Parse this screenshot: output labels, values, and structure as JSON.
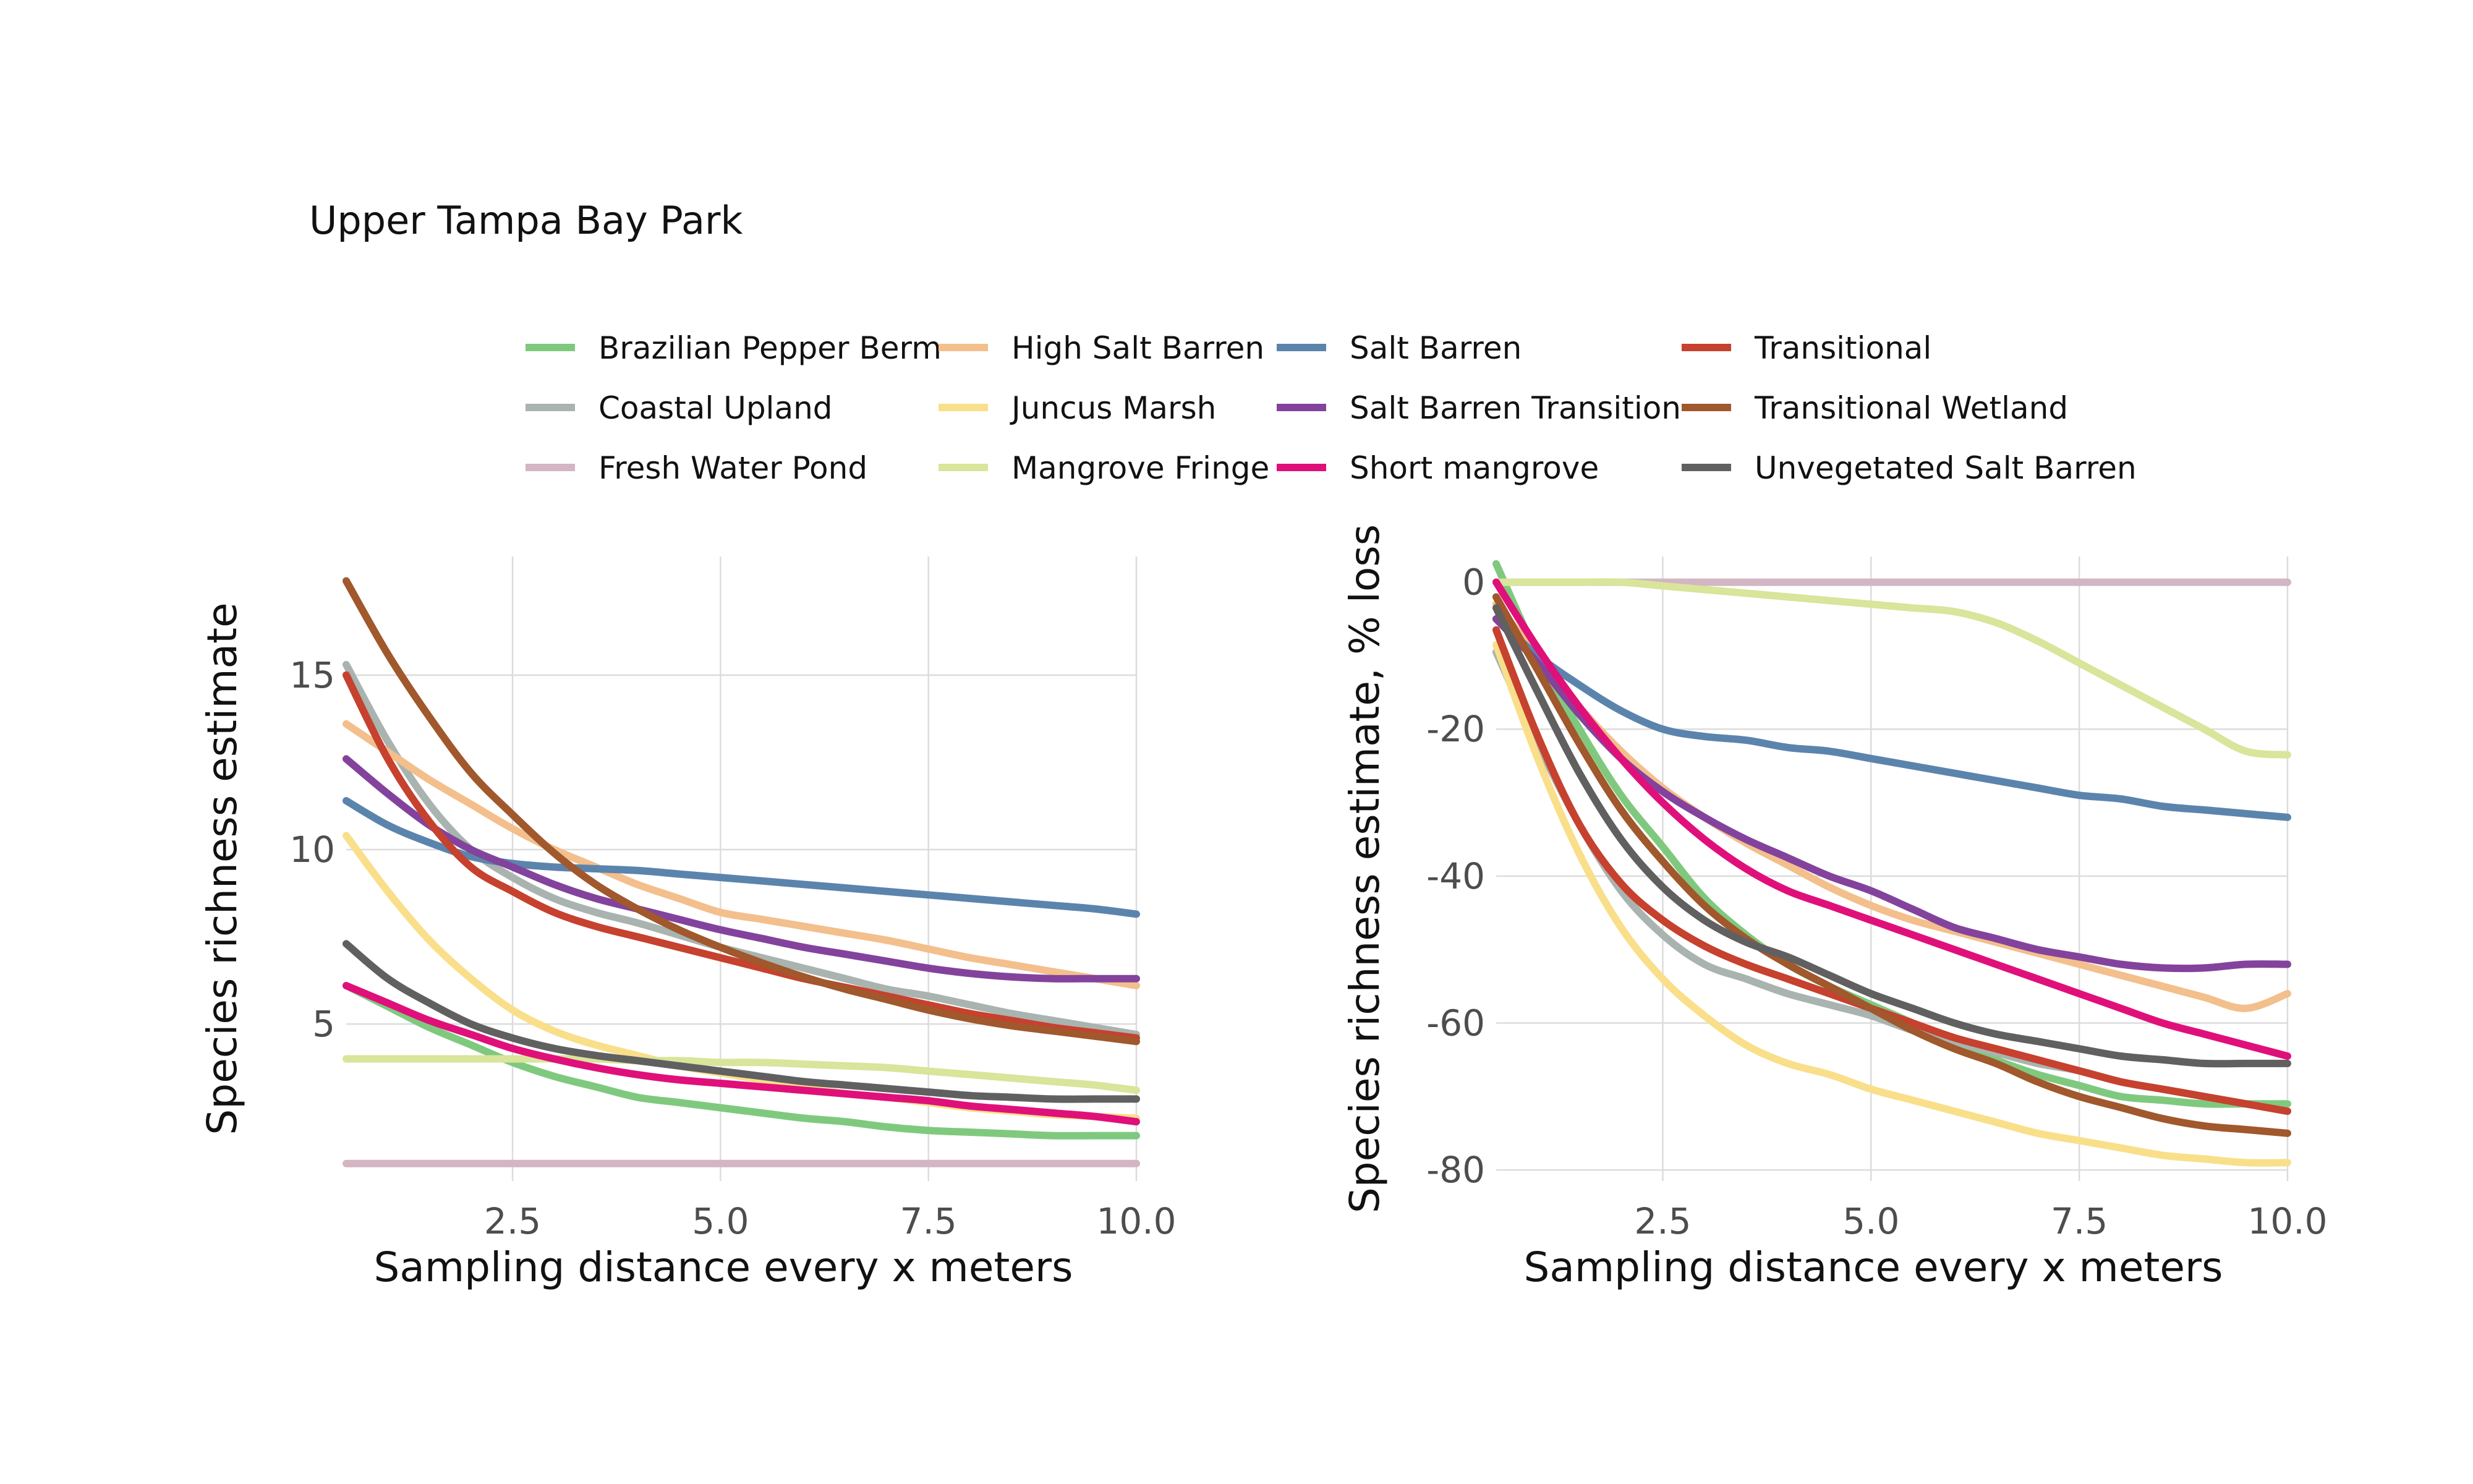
{
  "title": "Upper Tampa Bay Park",
  "colors": {
    "Brazilian Pepper Berm": "#7fc97f",
    "Coastal Upland": "#a9b3b0",
    "Fresh Water Pond": "#d3b5c3",
    "High Salt Barren": "#f3bf8c",
    "Juncus Marsh": "#f9df8a",
    "Mangrove Fringe": "#d8e59a",
    "Salt Barren": "#5b84ad",
    "Salt Barren Transition": "#83439d",
    "Short mangrove": "#e0107a",
    "Transitional": "#c6412e",
    "Transitional Wetland": "#a0582c",
    "Unvegetated Salt Barren": "#606060"
  },
  "legend": [
    "Brazilian Pepper Berm",
    "Coastal Upland",
    "Fresh Water Pond",
    "High Salt Barren",
    "Juncus Marsh",
    "Mangrove Fringe",
    "Salt Barren",
    "Salt Barren Transition",
    "Short mangrove",
    "Transitional",
    "Transitional Wetland",
    "Unvegetated Salt Barren"
  ],
  "chart_data": [
    {
      "type": "line",
      "xlabel": "Sampling distance every x meters",
      "ylabel": "Species richness estimate",
      "xlim": [
        0.5,
        10.0
      ],
      "ylim": [
        0.5,
        18.4
      ],
      "xticks": [
        "2.5",
        "5.0",
        "7.5",
        "10.0"
      ],
      "yticks": [
        "5",
        "10",
        "15"
      ],
      "grid": true,
      "x": [
        0.5,
        1,
        1.5,
        2,
        2.5,
        3,
        3.5,
        4,
        4.5,
        5,
        5.5,
        6,
        6.5,
        7,
        7.5,
        8,
        8.5,
        9,
        9.5,
        10
      ],
      "series": [
        {
          "name": "Brazilian Pepper Berm",
          "values": [
            6.1,
            5.5,
            4.9,
            4.4,
            3.9,
            3.5,
            3.2,
            2.9,
            2.75,
            2.6,
            2.45,
            2.3,
            2.2,
            2.05,
            1.95,
            1.9,
            1.85,
            1.8,
            1.8,
            1.8
          ]
        },
        {
          "name": "Coastal Upland",
          "values": [
            15.3,
            13.1,
            11.3,
            10.0,
            9.2,
            8.6,
            8.2,
            7.9,
            7.55,
            7.2,
            6.9,
            6.6,
            6.3,
            6.0,
            5.8,
            5.55,
            5.3,
            5.1,
            4.9,
            4.7
          ]
        },
        {
          "name": "Fresh Water Pond",
          "values": [
            1.0,
            1.0,
            1.0,
            1.0,
            1.0,
            1.0,
            1.0,
            1.0,
            1.0,
            1.0,
            1.0,
            1.0,
            1.0,
            1.0,
            1.0,
            1.0,
            1.0,
            1.0,
            1.0,
            1.0
          ]
        },
        {
          "name": "High Salt Barren",
          "values": [
            13.6,
            12.8,
            12.0,
            11.3,
            10.6,
            10.0,
            9.5,
            9.0,
            8.6,
            8.2,
            8.0,
            7.8,
            7.6,
            7.4,
            7.15,
            6.9,
            6.7,
            6.5,
            6.3,
            6.1
          ]
        },
        {
          "name": "Juncus Marsh",
          "values": [
            10.4,
            8.8,
            7.4,
            6.3,
            5.4,
            4.8,
            4.4,
            4.1,
            3.8,
            3.6,
            3.4,
            3.2,
            3.0,
            2.9,
            2.75,
            2.6,
            2.5,
            2.4,
            2.35,
            2.3
          ]
        },
        {
          "name": "Mangrove Fringe",
          "values": [
            4.0,
            4.0,
            4.0,
            4.0,
            4.0,
            4.0,
            4.0,
            3.95,
            3.95,
            3.9,
            3.9,
            3.85,
            3.8,
            3.75,
            3.65,
            3.55,
            3.45,
            3.35,
            3.25,
            3.1
          ]
        },
        {
          "name": "Salt Barren",
          "values": [
            11.4,
            10.7,
            10.2,
            9.8,
            9.6,
            9.5,
            9.45,
            9.4,
            9.3,
            9.2,
            9.1,
            9.0,
            8.9,
            8.8,
            8.7,
            8.6,
            8.5,
            8.4,
            8.3,
            8.15
          ]
        },
        {
          "name": "Salt Barren Transition",
          "values": [
            12.6,
            11.6,
            10.7,
            10.0,
            9.5,
            9.0,
            8.6,
            8.3,
            8.0,
            7.7,
            7.45,
            7.2,
            7.0,
            6.8,
            6.6,
            6.45,
            6.35,
            6.3,
            6.3,
            6.3
          ]
        },
        {
          "name": "Short mangrove",
          "values": [
            6.1,
            5.6,
            5.1,
            4.7,
            4.3,
            4.0,
            3.75,
            3.55,
            3.4,
            3.3,
            3.2,
            3.1,
            3.0,
            2.9,
            2.8,
            2.65,
            2.55,
            2.45,
            2.35,
            2.2
          ]
        },
        {
          "name": "Transitional",
          "values": [
            15.0,
            12.6,
            10.8,
            9.5,
            8.8,
            8.2,
            7.8,
            7.5,
            7.2,
            6.9,
            6.6,
            6.3,
            6.05,
            5.8,
            5.55,
            5.3,
            5.1,
            4.9,
            4.75,
            4.6
          ]
        },
        {
          "name": "Transitional Wetland",
          "values": [
            17.7,
            15.6,
            13.8,
            12.2,
            11.0,
            9.9,
            9.0,
            8.3,
            7.7,
            7.2,
            6.75,
            6.35,
            6.0,
            5.7,
            5.4,
            5.15,
            4.95,
            4.8,
            4.65,
            4.5
          ]
        },
        {
          "name": "Unvegetated Salt Barren",
          "values": [
            7.3,
            6.3,
            5.6,
            5.0,
            4.6,
            4.3,
            4.1,
            3.95,
            3.8,
            3.65,
            3.5,
            3.35,
            3.25,
            3.15,
            3.05,
            2.95,
            2.9,
            2.85,
            2.85,
            2.85
          ]
        }
      ]
    },
    {
      "type": "line",
      "xlabel": "Sampling distance every x meters",
      "ylabel": "Species richness estimate, % loss",
      "xlim": [
        0.5,
        10.0
      ],
      "ylim": [
        -81.5,
        3.5
      ],
      "xticks": [
        "2.5",
        "5.0",
        "7.5",
        "10.0"
      ],
      "yticks": [
        "0",
        "-20",
        "-40",
        "-60",
        "-80"
      ],
      "grid": true,
      "x": [
        0.5,
        1,
        1.5,
        2,
        2.5,
        3,
        3.5,
        4,
        4.5,
        5,
        5.5,
        6,
        6.5,
        7,
        7.5,
        8,
        8.5,
        9,
        9.5,
        10
      ],
      "series": [
        {
          "name": "Brazilian Pepper Berm",
          "values": [
            2.5,
            -10,
            -20,
            -29,
            -36,
            -43,
            -48,
            -52,
            -55,
            -57.5,
            -60,
            -62.5,
            -65,
            -67,
            -68.5,
            -70,
            -70.5,
            -71,
            -71,
            -71
          ]
        },
        {
          "name": "Coastal Upland",
          "values": [
            -9.5,
            -22,
            -33,
            -42,
            -48,
            -52,
            -54,
            -56,
            -57.5,
            -59,
            -61,
            -62.5,
            -64,
            -65.5,
            -66.5,
            -68,
            -69,
            -70,
            -71,
            -72
          ]
        },
        {
          "name": "Fresh Water Pond",
          "values": [
            0,
            0,
            0,
            0,
            0,
            0,
            0,
            0,
            0,
            0,
            0,
            0,
            0,
            0,
            0,
            0,
            0,
            0,
            0,
            0
          ]
        },
        {
          "name": "High Salt Barren",
          "values": [
            -3,
            -10,
            -17,
            -23,
            -28,
            -32,
            -35.5,
            -38.5,
            -41.5,
            -44,
            -46,
            -47.5,
            -49,
            -50.5,
            -52,
            -53.5,
            -55,
            -56.5,
            -58,
            -56
          ]
        },
        {
          "name": "Juncus Marsh",
          "values": [
            -8.5,
            -24,
            -37,
            -47,
            -54,
            -59,
            -63,
            -65.5,
            -67,
            -69,
            -70.5,
            -72,
            -73.5,
            -75,
            -76,
            -77,
            -78,
            -78.5,
            -79,
            -79
          ]
        },
        {
          "name": "Mangrove Fringe",
          "values": [
            0,
            0,
            0,
            0,
            -0.5,
            -1,
            -1.5,
            -2,
            -2.5,
            -3,
            -3.5,
            -4,
            -5.5,
            -8,
            -11,
            -14,
            -17,
            -20,
            -23,
            -23.5
          ]
        },
        {
          "name": "Salt Barren",
          "values": [
            -5,
            -10,
            -14,
            -17.5,
            -20,
            -21,
            -21.5,
            -22.5,
            -23,
            -24,
            -25,
            -26,
            -27,
            -28,
            -29,
            -29.5,
            -30.5,
            -31,
            -31.5,
            -32
          ]
        },
        {
          "name": "Salt Barren Transition",
          "values": [
            -5,
            -11,
            -18,
            -24,
            -28.5,
            -32,
            -35,
            -37.5,
            -40,
            -42,
            -44.5,
            -47,
            -48.5,
            -50,
            -51,
            -52,
            -52.5,
            -52.5,
            -52,
            -52
          ]
        },
        {
          "name": "Short mangrove",
          "values": [
            0,
            -9,
            -17,
            -24,
            -30,
            -35,
            -39,
            -42,
            -44,
            -46,
            -48,
            -50,
            -52,
            -54,
            -56,
            -58,
            -60,
            -61.5,
            -63,
            -64.5
          ]
        },
        {
          "name": "Transitional",
          "values": [
            -6.5,
            -21,
            -33,
            -41,
            -46,
            -49.5,
            -52,
            -54,
            -56,
            -58,
            -60,
            -62,
            -63.5,
            -65,
            -66.5,
            -68,
            -69,
            -70,
            -71,
            -72
          ]
        },
        {
          "name": "Transitional Wetland",
          "values": [
            -2,
            -12,
            -22,
            -31,
            -38,
            -44,
            -48.5,
            -52,
            -55,
            -58,
            -61,
            -63.5,
            -65.5,
            -68,
            -70,
            -71.5,
            -73,
            -74,
            -74.5,
            -75
          ]
        },
        {
          "name": "Unvegetated Salt Barren",
          "values": [
            -3.5,
            -15,
            -26,
            -35,
            -41.5,
            -46,
            -49,
            -51,
            -53.5,
            -56,
            -58,
            -60,
            -61.5,
            -62.5,
            -63.5,
            -64.5,
            -65,
            -65.5,
            -65.5,
            -65.5
          ]
        }
      ]
    }
  ]
}
